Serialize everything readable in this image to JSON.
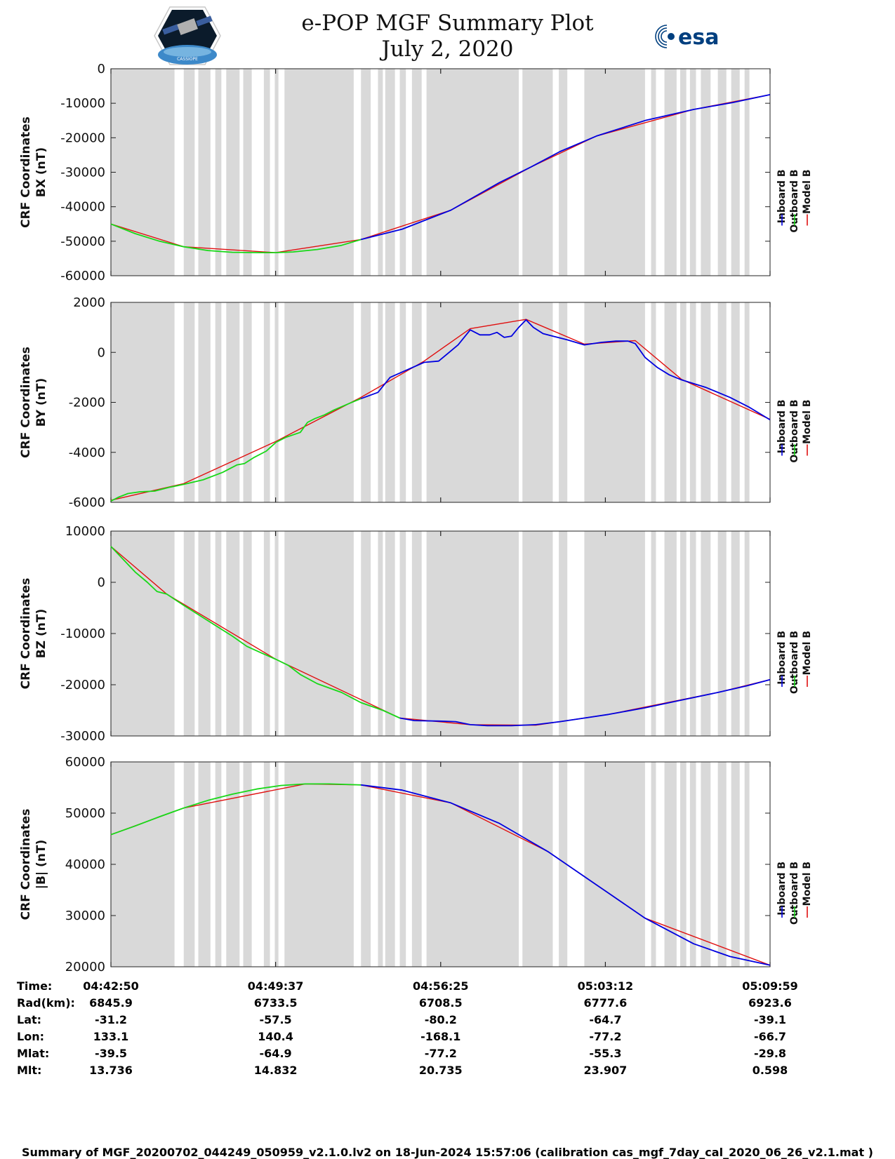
{
  "header": {
    "title": "e-POP MGF Summary Plot",
    "date": "July 2, 2020",
    "left_logo_icon": "cassiope-satellite-logo",
    "left_logo_text": "CASSIOPE",
    "right_logo_icon": "esa-logo",
    "right_logo_text": "esa"
  },
  "colors": {
    "inboard": "#0000e0",
    "outboard": "#18d818",
    "model": "#e01010",
    "gap_band": "#d9d9d9"
  },
  "legend": [
    "Inboard B",
    "Outboard B",
    "Model B"
  ],
  "time_axis": {
    "range_minutes": [
      0,
      27.15
    ],
    "tick_minutes": [
      0,
      6.783,
      13.583,
      20.367,
      27.15
    ]
  },
  "shaded_intervals_minutes": [
    [
      0,
      2.62
    ],
    [
      3.0,
      3.45
    ],
    [
      3.6,
      4.1
    ],
    [
      4.3,
      4.55
    ],
    [
      4.75,
      5.3
    ],
    [
      5.45,
      5.8
    ],
    [
      6.3,
      6.55
    ],
    [
      6.75,
      6.9
    ],
    [
      7.15,
      10.0
    ],
    [
      10.3,
      10.7
    ],
    [
      11.0,
      11.2
    ],
    [
      11.3,
      11.7
    ],
    [
      11.9,
      12.15
    ],
    [
      12.4,
      12.8
    ],
    [
      13.0,
      16.8
    ],
    [
      16.95,
      18.2
    ],
    [
      18.45,
      18.8
    ],
    [
      19.5,
      22.0
    ],
    [
      22.25,
      22.45
    ],
    [
      22.8,
      23.3
    ],
    [
      23.45,
      23.7
    ],
    [
      23.85,
      24.1
    ],
    [
      24.3,
      24.7
    ],
    [
      25.0,
      25.35
    ],
    [
      25.55,
      25.9
    ],
    [
      26.1,
      26.3
    ]
  ],
  "chart_data": [
    {
      "type": "line",
      "ylabel": "CRF Coordinates",
      "ylabel2": "BX (nT)",
      "ylim": [
        -60000,
        0
      ],
      "yticks": [
        0,
        -10000,
        -20000,
        -30000,
        -40000,
        -50000,
        -60000
      ],
      "ytick_labels": [
        "0",
        "-10000",
        "-20000",
        "-30000",
        "-40000",
        "-50000",
        "-60000"
      ],
      "series": [
        {
          "name": "Inboard B",
          "x": [
            10.3,
            12.0,
            14.0,
            16.0,
            17.3,
            18.5,
            20.0,
            22.0,
            24.0,
            25.6,
            27.15
          ],
          "values": [
            -49500,
            -46500,
            -41000,
            -33000,
            -28500,
            -24000,
            -19500,
            -15000,
            -11800,
            -9800,
            -7500
          ]
        },
        {
          "name": "Outboard B",
          "x": [
            0,
            1.0,
            2.0,
            3.0,
            4.0,
            5.0,
            6.0,
            6.78,
            7.5,
            8.5,
            9.5,
            10.3
          ],
          "values": [
            -45000,
            -47800,
            -50000,
            -51600,
            -52700,
            -53200,
            -53300,
            -53300,
            -53100,
            -52400,
            -51200,
            -49500
          ]
        },
        {
          "name": "Model B",
          "x": [
            0,
            3.0,
            6.78,
            10.3,
            14.0,
            17.3,
            20.0,
            24.0,
            27.15
          ],
          "values": [
            -45000,
            -51600,
            -53300,
            -49500,
            -41000,
            -28500,
            -19500,
            -11800,
            -7500
          ]
        }
      ]
    },
    {
      "type": "line",
      "ylabel": "CRF Coordinates",
      "ylabel2": "BY (nT)",
      "ylim": [
        -6000,
        2000
      ],
      "yticks": [
        2000,
        0,
        -2000,
        -4000,
        -6000
      ],
      "ytick_labels": [
        "2000",
        "0",
        "-2000",
        "-4000",
        "-6000"
      ],
      "series": [
        {
          "name": "Inboard B",
          "x": [
            10.3,
            11.0,
            11.5,
            12.2,
            12.9,
            13.5,
            14.3,
            14.8,
            15.2,
            15.6,
            15.9,
            16.2,
            16.5,
            16.8,
            17.1,
            17.4,
            17.8,
            18.2,
            18.8,
            19.5,
            20.2,
            20.8,
            21.3,
            21.6,
            22.0,
            22.5,
            23.0,
            23.5,
            24.5,
            25.5,
            26.3,
            27.15
          ],
          "values": [
            -1850,
            -1600,
            -1000,
            -700,
            -400,
            -350,
            300,
            900,
            700,
            700,
            800,
            600,
            650,
            1000,
            1300,
            1000,
            750,
            650,
            500,
            300,
            400,
            450,
            450,
            350,
            -200,
            -600,
            -900,
            -1100,
            -1400,
            -1800,
            -2200,
            -2700
          ]
        },
        {
          "name": "Outboard B",
          "x": [
            0,
            0.3,
            0.7,
            1.2,
            1.8,
            2.4,
            3.0,
            3.8,
            4.6,
            5.2,
            5.5,
            5.9,
            6.4,
            6.8,
            7.2,
            7.8,
            8.1,
            8.4,
            8.8,
            9.2,
            9.8,
            10.3
          ],
          "values": [
            -5950,
            -5800,
            -5650,
            -5580,
            -5550,
            -5400,
            -5280,
            -5100,
            -4800,
            -4500,
            -4450,
            -4200,
            -3950,
            -3600,
            -3400,
            -3200,
            -2800,
            -2650,
            -2500,
            -2300,
            -2050,
            -1850
          ]
        },
        {
          "name": "Model B",
          "x": [
            0,
            3.0,
            6.8,
            10.3,
            12.9,
            14.8,
            17.1,
            19.5,
            21.6,
            23.5,
            27.15
          ],
          "values": [
            -5920,
            -5250,
            -3560,
            -1800,
            -350,
            950,
            1320,
            330,
            470,
            -1080,
            -2680
          ]
        }
      ]
    },
    {
      "type": "line",
      "ylabel": "CRF Coordinates",
      "ylabel2": "BZ (nT)",
      "ylim": [
        -30000,
        10000
      ],
      "yticks": [
        10000,
        0,
        -10000,
        -20000,
        -30000
      ],
      "ytick_labels": [
        "10000",
        "0",
        "-10000",
        "-20000",
        "-30000"
      ],
      "series": [
        {
          "name": "Inboard B",
          "x": [
            11.9,
            12.5,
            13.5,
            14.2,
            14.8,
            15.5,
            16.5,
            17.5,
            18.5,
            19.5,
            20.5,
            22.0,
            23.5,
            25.0,
            26.2,
            27.15
          ],
          "values": [
            -26500,
            -27000,
            -27100,
            -27200,
            -27800,
            -28000,
            -28000,
            -27800,
            -27200,
            -26500,
            -25800,
            -24500,
            -23000,
            -21500,
            -20200,
            -19000
          ]
        },
        {
          "name": "Outboard B",
          "x": [
            0,
            0.5,
            1.0,
            1.5,
            1.9,
            2.3,
            3.0,
            4.0,
            5.0,
            5.6,
            6.2,
            6.78,
            7.3,
            7.8,
            8.5,
            9.5,
            10.3,
            11.2,
            11.9
          ],
          "values": [
            7000,
            4500,
            2000,
            0,
            -1800,
            -2300,
            -4500,
            -7500,
            -10500,
            -12500,
            -13800,
            -15000,
            -16200,
            -18000,
            -19800,
            -21500,
            -23500,
            -25000,
            -26500
          ]
        },
        {
          "name": "Model B",
          "x": [
            0,
            2.3,
            6.78,
            11.9,
            14.8,
            17.5,
            20.5,
            25.0,
            27.15
          ],
          "values": [
            7000,
            -2300,
            -15000,
            -26500,
            -27800,
            -27900,
            -25800,
            -21500,
            -19000
          ]
        }
      ]
    },
    {
      "type": "line",
      "ylabel": "CRF Coordinates",
      "ylabel2": "|B| (nT)",
      "ylim": [
        20000,
        60000
      ],
      "yticks": [
        60000,
        50000,
        40000,
        30000,
        20000
      ],
      "ytick_labels": [
        "60000",
        "50000",
        "40000",
        "30000",
        "20000"
      ],
      "series": [
        {
          "name": "Inboard B",
          "x": [
            10.3,
            12.0,
            14.0,
            16.0,
            18.0,
            20.0,
            22.0,
            24.0,
            25.5,
            27.15
          ],
          "values": [
            55500,
            54500,
            52000,
            48000,
            42500,
            36000,
            29500,
            24500,
            22000,
            20300
          ]
        },
        {
          "name": "Outboard B",
          "x": [
            0,
            1.0,
            2.0,
            3.0,
            4.0,
            5.0,
            6.0,
            7.0,
            8.0,
            9.0,
            10.3
          ],
          "values": [
            45800,
            47500,
            49300,
            51000,
            52500,
            53700,
            54700,
            55400,
            55700,
            55700,
            55500
          ]
        },
        {
          "name": "Model B",
          "x": [
            0,
            3.0,
            8.0,
            10.3,
            14.0,
            18.0,
            22.0,
            27.15
          ],
          "values": [
            45800,
            51000,
            55700,
            55500,
            52000,
            42500,
            29500,
            20300
          ]
        }
      ]
    }
  ],
  "orbit_table": {
    "row_labels": [
      "Time:",
      "Rad(km):",
      "Lat:",
      "Lon:",
      "Mlat:",
      "Mlt:"
    ],
    "columns": [
      [
        "04:42:50",
        "6845.9",
        "-31.2",
        "133.1",
        "-39.5",
        "13.736"
      ],
      [
        "04:49:37",
        "6733.5",
        "-57.5",
        "140.4",
        "-64.9",
        "14.832"
      ],
      [
        "04:56:25",
        "6708.5",
        "-80.2",
        "-168.1",
        "-77.2",
        "20.735"
      ],
      [
        "05:03:12",
        "6777.6",
        "-64.7",
        "-77.2",
        "-55.3",
        "23.907"
      ],
      [
        "05:09:59",
        "6923.6",
        "-39.1",
        "-66.7",
        "-29.8",
        "0.598"
      ]
    ]
  },
  "footer": "Summary of MGF_20200702_044249_050959_v2.1.0.lv2 on 18-Jun-2024 15:57:06 (calibration cas_mgf_7day_cal_2020_06_26_v2.1.mat )"
}
